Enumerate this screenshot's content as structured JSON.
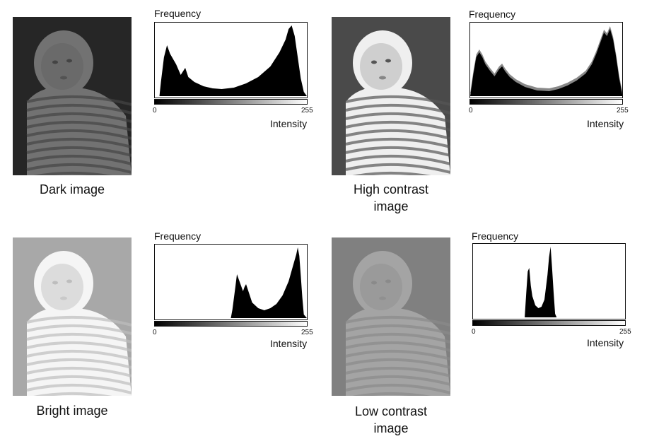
{
  "panels": [
    {
      "id": "dark",
      "caption": "Dark image",
      "photo": {
        "bg": "#262626",
        "skin": "#6a6a6a",
        "stripe_light": "#727272",
        "stripe_dark": "#444444"
      },
      "histogram": {
        "freq_label": "Frequency",
        "axis_label": "Intensity",
        "tick_min": "0",
        "tick_max": "255",
        "values": [
          [
            0,
            0
          ],
          [
            3,
            0
          ],
          [
            4,
            0.2
          ],
          [
            6,
            0.55
          ],
          [
            8,
            0.72
          ],
          [
            10,
            0.6
          ],
          [
            14,
            0.45
          ],
          [
            17,
            0.3
          ],
          [
            20,
            0.4
          ],
          [
            22,
            0.27
          ],
          [
            26,
            0.2
          ],
          [
            32,
            0.14
          ],
          [
            38,
            0.11
          ],
          [
            44,
            0.1
          ],
          [
            52,
            0.12
          ],
          [
            60,
            0.18
          ],
          [
            68,
            0.27
          ],
          [
            76,
            0.42
          ],
          [
            82,
            0.62
          ],
          [
            86,
            0.8
          ],
          [
            88,
            0.95
          ],
          [
            90,
            1.0
          ],
          [
            92,
            0.85
          ],
          [
            94,
            0.55
          ],
          [
            96,
            0.25
          ],
          [
            98,
            0.06
          ],
          [
            100,
            0
          ]
        ]
      }
    },
    {
      "id": "high-contrast",
      "caption": "High contrast image",
      "caption_lines": [
        "High contrast",
        "image"
      ],
      "photo": {
        "bg": "#4a4a4a",
        "skin": "#cfcfcf",
        "stripe_light": "#efefef",
        "stripe_dark": "#555555"
      },
      "histogram": {
        "freq_label": "Frequency",
        "axis_label": "Intensity",
        "tick_min": "0",
        "tick_max": "255",
        "values": [
          [
            0,
            0
          ],
          [
            2,
            0.3
          ],
          [
            4,
            0.55
          ],
          [
            6,
            0.62
          ],
          [
            8,
            0.55
          ],
          [
            10,
            0.45
          ],
          [
            13,
            0.36
          ],
          [
            16,
            0.28
          ],
          [
            19,
            0.38
          ],
          [
            21,
            0.42
          ],
          [
            23,
            0.35
          ],
          [
            26,
            0.27
          ],
          [
            30,
            0.2
          ],
          [
            36,
            0.13
          ],
          [
            44,
            0.08
          ],
          [
            52,
            0.07
          ],
          [
            58,
            0.1
          ],
          [
            64,
            0.15
          ],
          [
            70,
            0.22
          ],
          [
            76,
            0.32
          ],
          [
            80,
            0.45
          ],
          [
            83,
            0.6
          ],
          [
            86,
            0.78
          ],
          [
            88,
            0.9
          ],
          [
            90,
            0.85
          ],
          [
            92,
            0.95
          ],
          [
            94,
            0.8
          ],
          [
            96,
            0.55
          ],
          [
            98,
            0.25
          ],
          [
            100,
            0.03
          ]
        ]
      }
    },
    {
      "id": "bright",
      "caption": "Bright image",
      "photo": {
        "bg": "#a8a8a8",
        "skin": "#dcdcdc",
        "stripe_light": "#f5f5f5",
        "stripe_dark": "#bdbdbd"
      },
      "histogram": {
        "freq_label": "Frequency",
        "axis_label": "Intensity",
        "tick_min": "0",
        "tick_max": "255",
        "values": [
          [
            0,
            0
          ],
          [
            50,
            0
          ],
          [
            51,
            0.12
          ],
          [
            53,
            0.45
          ],
          [
            54,
            0.62
          ],
          [
            56,
            0.5
          ],
          [
            58,
            0.38
          ],
          [
            59,
            0.44
          ],
          [
            60,
            0.48
          ],
          [
            62,
            0.35
          ],
          [
            64,
            0.22
          ],
          [
            68,
            0.14
          ],
          [
            72,
            0.11
          ],
          [
            76,
            0.14
          ],
          [
            80,
            0.2
          ],
          [
            84,
            0.32
          ],
          [
            88,
            0.52
          ],
          [
            91,
            0.75
          ],
          [
            93,
            0.9
          ],
          [
            94,
            1.0
          ],
          [
            95,
            0.88
          ],
          [
            96,
            0.6
          ],
          [
            97,
            0.3
          ],
          [
            98,
            0.05
          ],
          [
            100,
            0
          ]
        ]
      }
    },
    {
      "id": "low-contrast",
      "caption": "Low contrast image",
      "caption_lines": [
        "Low contrast",
        "image"
      ],
      "photo": {
        "bg": "#808080",
        "skin": "#9a9a9a",
        "stripe_light": "#a4a4a4",
        "stripe_dark": "#8a8a8a"
      },
      "histogram": {
        "freq_label": "Frequency",
        "axis_label": "Intensity",
        "tick_min": "0",
        "tick_max": "255",
        "values": [
          [
            0,
            0
          ],
          [
            34,
            0
          ],
          [
            35,
            0.35
          ],
          [
            36,
            0.65
          ],
          [
            37,
            0.7
          ],
          [
            38,
            0.45
          ],
          [
            39,
            0.3
          ],
          [
            41,
            0.17
          ],
          [
            43,
            0.13
          ],
          [
            45,
            0.15
          ],
          [
            47,
            0.25
          ],
          [
            49,
            0.6
          ],
          [
            50,
            0.85
          ],
          [
            51,
            1.0
          ],
          [
            52,
            0.7
          ],
          [
            53,
            0.35
          ],
          [
            54,
            0.05
          ],
          [
            55,
            0
          ],
          [
            100,
            0
          ]
        ]
      }
    }
  ]
}
